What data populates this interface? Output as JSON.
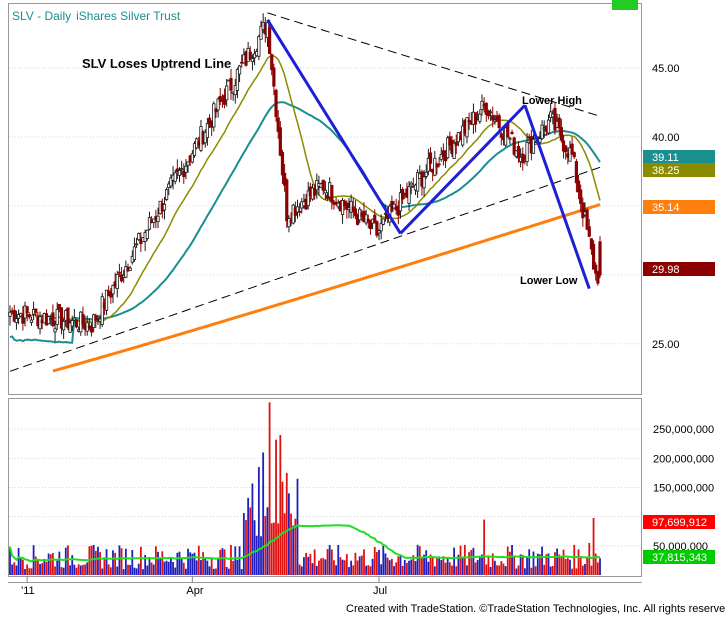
{
  "header": {
    "symbol": "SLV",
    "sep": " - ",
    "interval": "Daily",
    "name": "iShares Silver Trust"
  },
  "footer": {
    "credit": "Created with TradeStation. ©TradeStation Technologies, Inc. All rights reserved."
  },
  "colors": {
    "up": "#1a1a1a",
    "down": "#8b0000",
    "ma_short": "#8b8b00",
    "ma_mid": "#1a8f8f",
    "ma_long": "#ff7f0e",
    "trend": "#1f1fd6",
    "volume_up": "#1f1fbf",
    "volume_down": "#e01010",
    "volume_avg": "#22dd22",
    "indicator_green": "#00dd00"
  },
  "chart_data": {
    "type": "candlestick",
    "title": "SLV Loses Uptrend Line",
    "annotations": [
      "Lower High",
      "Lower Low"
    ],
    "x_ticks": [
      "'11",
      "Apr",
      "Jul"
    ],
    "price_axis": {
      "ticks": [
        25,
        30,
        35,
        40,
        45
      ],
      "tick_labels": [
        "25.00",
        "",
        "",
        "40.00",
        "45.00"
      ],
      "range": [
        21.5,
        49.5
      ]
    },
    "volume_axis": {
      "ticks": [
        50000000,
        100000000,
        150000000,
        200000000,
        250000000
      ],
      "tick_labels": [
        "50,000,000",
        "",
        "150,000,000",
        "200,000,000",
        "250,000,000"
      ],
      "range": [
        0,
        300000000
      ]
    },
    "price_badges": [
      {
        "label": "39.11",
        "value": 39.11,
        "color": "#1a8f8f"
      },
      {
        "label": "38.25",
        "value": 38.25,
        "color": "#8b8b00"
      },
      {
        "label": "35.14",
        "value": 35.14,
        "color": "#ff7f0e"
      },
      {
        "label": "29.98",
        "value": 29.98,
        "color": "#8b0000"
      }
    ],
    "volume_badges": [
      {
        "label": "97,699,912",
        "value": 97699912,
        "color": "#ff0000"
      },
      {
        "label": "37,815,343",
        "value": 37815343,
        "color": "#00cc00"
      }
    ],
    "anchors": [
      {
        "name": "start",
        "bar": 0,
        "price": 27.3
      },
      {
        "name": "feb-dip",
        "bar": 38,
        "price": 26.4
      },
      {
        "name": "april-peak",
        "bar": 120,
        "price": 48.3
      },
      {
        "name": "may-crash",
        "bar": 129,
        "price": 34.5
      },
      {
        "name": "may-bounce",
        "bar": 146,
        "price": 36.5
      },
      {
        "name": "june-low",
        "bar": 171,
        "price": 33.0
      },
      {
        "name": "july-rise",
        "bar": 190,
        "price": 36.8
      },
      {
        "name": "aug-high",
        "bar": 222,
        "price": 42.3
      },
      {
        "name": "aug-pullback",
        "bar": 238,
        "price": 38.7
      },
      {
        "name": "sep-high",
        "bar": 252,
        "price": 41.2
      },
      {
        "name": "sep-drift",
        "bar": 262,
        "price": 38.6
      },
      {
        "name": "sep-crash",
        "bar": 273,
        "price": 29.98
      }
    ],
    "trend_lines": [
      {
        "name": "lower-high-line",
        "style": "dashed",
        "from": {
          "bar": 120,
          "price": 49.0
        },
        "to": {
          "bar": 275,
          "price": 41.5
        }
      },
      {
        "name": "broken-uptrend-line",
        "style": "dashed",
        "from": {
          "bar": 0,
          "price": 23.0
        },
        "to": {
          "bar": 275,
          "price": 37.8
        }
      }
    ],
    "swing_lines": [
      {
        "name": "swing-1",
        "from": {
          "bar": 120,
          "price": 48.5
        },
        "to": {
          "bar": 182,
          "price": 33.0
        }
      },
      {
        "name": "swing-2",
        "from": {
          "bar": 182,
          "price": 33.0
        },
        "to": {
          "bar": 240,
          "price": 42.3
        }
      },
      {
        "name": "swing-3",
        "from": {
          "bar": 240,
          "price": 42.3
        },
        "to": {
          "bar": 270,
          "price": 29.0
        }
      }
    ],
    "volume_spikes": [
      {
        "bar": 116,
        "volume": 185000000
      },
      {
        "bar": 118,
        "volume": 210000000
      },
      {
        "bar": 121,
        "volume": 296000000
      },
      {
        "bar": 124,
        "volume": 232000000
      },
      {
        "bar": 126,
        "volume": 240000000
      },
      {
        "bar": 129,
        "volume": 175000000
      },
      {
        "bar": 134,
        "volume": 165000000
      },
      {
        "bar": 221,
        "volume": 95000000
      },
      {
        "bar": 272,
        "volume": 97699912
      },
      {
        "bar": 270,
        "volume": 55000000
      }
    ]
  }
}
